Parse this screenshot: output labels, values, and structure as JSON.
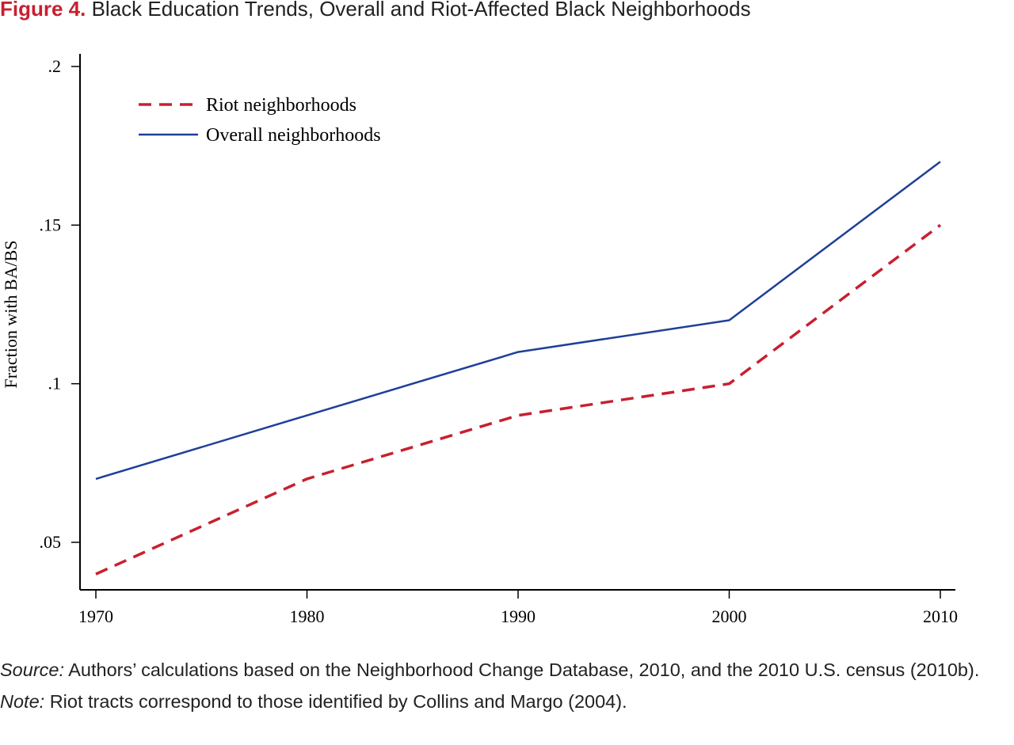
{
  "figure": {
    "label": "Figure 4.",
    "title": "Black Education Trends, Overall and Riot-Affected Black Neighborhoods"
  },
  "notes": {
    "source_label": "Source:",
    "source_text": "Authors’ calculations based on the Neighborhood Change Database, 2010, and the 2010 U.S. census (2010b).",
    "note_label": "Note:",
    "note_text": "Riot tracts correspond to those identified by Collins and Margo (2004)."
  },
  "chart_data": {
    "type": "line",
    "title": "",
    "xlabel": "",
    "ylabel": "Fraction with BA/BS",
    "x": [
      1970,
      1980,
      1990,
      2000,
      2010
    ],
    "xlim": [
      1970,
      2010
    ],
    "ylim": [
      0.035,
      0.2
    ],
    "x_ticks": [
      1970,
      1980,
      1990,
      2000,
      2010
    ],
    "x_tick_labels": [
      "1970",
      "1980",
      "1990",
      "2000",
      "2010"
    ],
    "y_ticks": [
      0.05,
      0.1,
      0.15,
      0.2
    ],
    "y_tick_labels": [
      ".05",
      ".1",
      ".15",
      ".2"
    ],
    "grid": false,
    "legend_position": "top-left",
    "series": [
      {
        "name": "Riot neighborhoods",
        "values": [
          0.04,
          0.07,
          0.09,
          0.1,
          0.15
        ],
        "color": "#c8202f",
        "style": "dashed"
      },
      {
        "name": "Overall neighborhoods",
        "values": [
          0.07,
          0.09,
          0.11,
          0.12,
          0.17
        ],
        "color": "#1f3f99",
        "style": "solid"
      }
    ]
  }
}
